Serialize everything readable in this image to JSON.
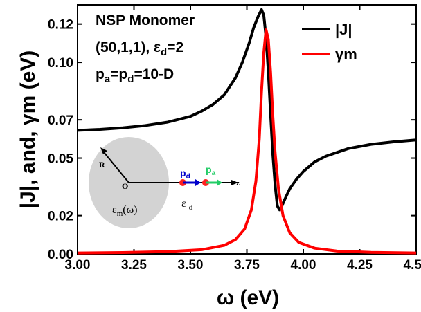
{
  "chart_data": {
    "type": "line",
    "xlabel": "ω (eV)",
    "ylabel": "|J|, and, γm (eV)",
    "xlim": [
      3.0,
      4.5
    ],
    "ylim": [
      0.0,
      0.13
    ],
    "x_ticks": [
      "3.00",
      "3.25",
      "3.50",
      "3.75",
      "4.00",
      "4.25",
      "4.50"
    ],
    "y_ticks": [
      "0.00",
      "0.02",
      "0.05",
      "0.07",
      "0.10",
      "0.12"
    ],
    "legend_position": "top-right",
    "annotations": {
      "line1": "NSP Monomer",
      "line2_prefix": "(50,1,1), ε",
      "line2_sub": "d",
      "line2_suffix": "=2",
      "line3_p1": "p",
      "line3_sub1": "a",
      "line3_mid": "=p",
      "line3_sub2": "d",
      "line3_suffix": "=10-D"
    },
    "inset": {
      "R": "R",
      "O": "O",
      "z": "z",
      "pd_p": "p",
      "pd_sub": "d",
      "pa_p": "p",
      "pa_sub": "a",
      "eps_m": "ε",
      "eps_m_sub": "m",
      "eps_m_arg": "(ω)",
      "eps_d": "ε",
      "eps_d_sub": "d"
    },
    "series": [
      {
        "name": "|J|",
        "color": "#000000",
        "x": [
          3.0,
          3.1,
          3.2,
          3.3,
          3.4,
          3.5,
          3.55,
          3.6,
          3.65,
          3.7,
          3.73,
          3.76,
          3.78,
          3.8,
          3.815,
          3.825,
          3.835,
          3.845,
          3.855,
          3.865,
          3.875,
          3.885,
          3.895,
          3.905,
          3.92,
          3.94,
          3.97,
          4.0,
          4.05,
          4.1,
          4.2,
          4.3,
          4.4,
          4.5
        ],
        "y": [
          0.0645,
          0.065,
          0.0658,
          0.067,
          0.0688,
          0.0718,
          0.0745,
          0.078,
          0.083,
          0.092,
          0.1,
          0.11,
          0.118,
          0.124,
          0.1275,
          0.1245,
          0.113,
          0.095,
          0.073,
          0.052,
          0.036,
          0.025,
          0.023,
          0.025,
          0.029,
          0.034,
          0.039,
          0.043,
          0.048,
          0.051,
          0.055,
          0.0572,
          0.0585,
          0.0595
        ]
      },
      {
        "name": "γm",
        "color": "#ff0000",
        "x": [
          3.0,
          3.2,
          3.4,
          3.55,
          3.65,
          3.7,
          3.74,
          3.77,
          3.79,
          3.805,
          3.815,
          3.825,
          3.835,
          3.845,
          3.855,
          3.865,
          3.875,
          3.89,
          3.91,
          3.94,
          3.98,
          4.05,
          4.15,
          4.3,
          4.5
        ],
        "y": [
          0.0005,
          0.0007,
          0.0012,
          0.0022,
          0.0045,
          0.0075,
          0.013,
          0.023,
          0.038,
          0.06,
          0.085,
          0.105,
          0.117,
          0.112,
          0.095,
          0.072,
          0.053,
          0.034,
          0.02,
          0.011,
          0.006,
          0.003,
          0.0015,
          0.0008,
          0.0005
        ]
      }
    ]
  }
}
